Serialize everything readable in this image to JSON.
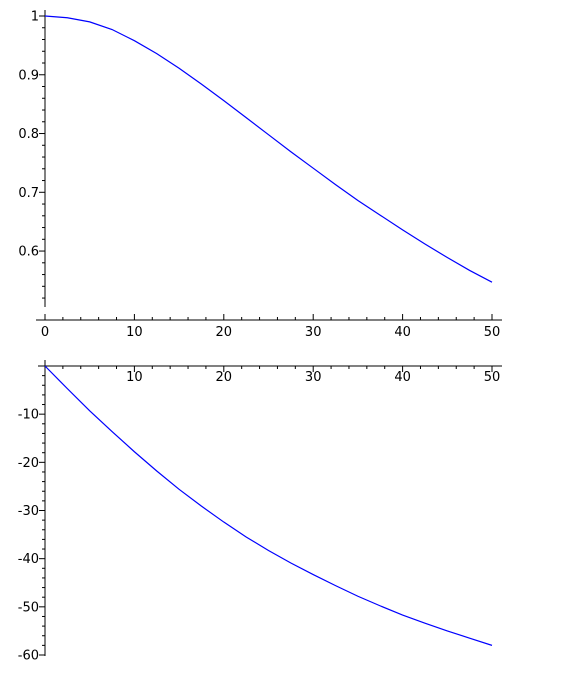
{
  "chart_data": [
    {
      "type": "line",
      "title": "",
      "xlabel": "",
      "ylabel": "",
      "xlim": [
        0,
        50
      ],
      "ylim": [
        0.515,
        1.0
      ],
      "grid": false,
      "x_ticks": [
        0,
        10,
        20,
        30,
        40,
        50
      ],
      "x_tick_labels": [
        "0",
        "10",
        "20",
        "30",
        "40",
        "50"
      ],
      "y_ticks": [
        0.6,
        0.7,
        0.8,
        0.9,
        1.0
      ],
      "y_tick_labels": [
        "0.6",
        "0.7",
        "0.8",
        "0.9",
        "1"
      ],
      "colors": {
        "line": "#0000ff",
        "axes": "#000000"
      },
      "series": [
        {
          "x": [
            0,
            2.5,
            5,
            7.5,
            10,
            12.5,
            15,
            17.5,
            20,
            22.5,
            25,
            27.5,
            30,
            32.5,
            35,
            37.5,
            40,
            42.5,
            45,
            47.5,
            50
          ],
          "values": [
            1.0,
            0.997,
            0.99,
            0.977,
            0.958,
            0.936,
            0.911,
            0.884,
            0.856,
            0.827,
            0.798,
            0.769,
            0.741,
            0.713,
            0.686,
            0.661,
            0.636,
            0.612,
            0.589,
            0.567,
            0.547
          ]
        }
      ]
    },
    {
      "type": "line",
      "title": "",
      "xlabel": "",
      "ylabel": "",
      "xlim": [
        0,
        50
      ],
      "ylim": [
        -60,
        0
      ],
      "grid": false,
      "x_axis_at_top": true,
      "x_ticks": [
        10,
        20,
        30,
        40,
        50
      ],
      "x_tick_labels": [
        "10",
        "20",
        "30",
        "40",
        "50"
      ],
      "y_ticks": [
        -10,
        -20,
        -30,
        -40,
        -50,
        -60
      ],
      "y_tick_labels": [
        "-10",
        "-20",
        "-30",
        "-40",
        "-50",
        "-60"
      ],
      "colors": {
        "line": "#0000ff",
        "axes": "#000000"
      },
      "series": [
        {
          "x": [
            0,
            2.5,
            5,
            7.5,
            10,
            12.5,
            15,
            17.5,
            20,
            22.5,
            25,
            27.5,
            30,
            32.5,
            35,
            37.5,
            40,
            42.5,
            45,
            47.5,
            50
          ],
          "values": [
            0,
            -4.7,
            -9.3,
            -13.6,
            -17.8,
            -21.8,
            -25.6,
            -29.1,
            -32.4,
            -35.5,
            -38.3,
            -40.9,
            -43.3,
            -45.6,
            -47.8,
            -49.8,
            -51.7,
            -53.4,
            -55.0,
            -56.5,
            -58.0
          ]
        }
      ]
    }
  ]
}
